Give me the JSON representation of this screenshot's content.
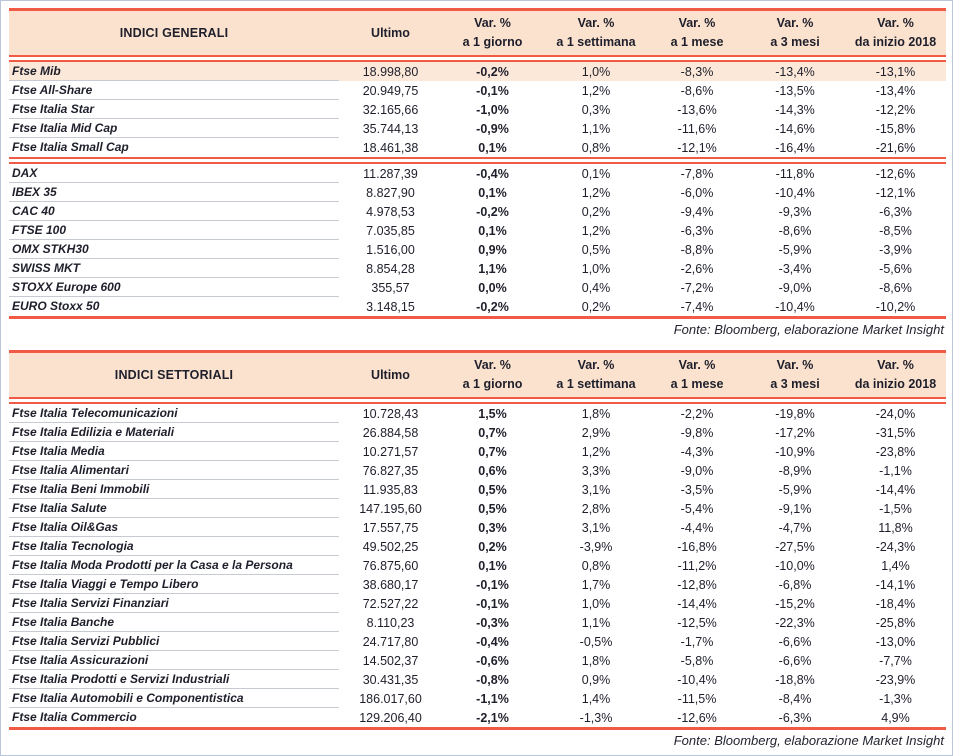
{
  "colors": {
    "accent_line": "#f15b45",
    "header_bg": "#fbe2cf",
    "highlight_row_bg": "#fce8d9",
    "row_divider": "#c6cad1",
    "frame_border": "#b9c6da",
    "text": "#1e1f2b"
  },
  "columns": {
    "ultimo": "Ultimo",
    "var_label": "Var. %",
    "periods": [
      "a 1 giorno",
      "a 1 settimana",
      "a 1 mese",
      "a 3 mesi",
      "da inizio 2018"
    ]
  },
  "fonte": "Fonte: Bloomberg, elaborazione Market Insight",
  "tables": [
    {
      "title": "INDICI GENERALI",
      "rows": [
        {
          "name": "Ftse Mib",
          "ultimo": "18.998,80",
          "values": [
            "-0,2%",
            "1,0%",
            "-8,3%",
            "-13,4%",
            "-13,1%"
          ],
          "highlight": true
        },
        {
          "name": "Ftse All-Share",
          "ultimo": "20.949,75",
          "values": [
            "-0,1%",
            "1,2%",
            "-8,6%",
            "-13,5%",
            "-13,4%"
          ]
        },
        {
          "name": "Ftse Italia Star",
          "ultimo": "32.165,66",
          "values": [
            "-1,0%",
            "0,3%",
            "-13,6%",
            "-14,3%",
            "-12,2%"
          ]
        },
        {
          "name": "Ftse Italia Mid Cap",
          "ultimo": "35.744,13",
          "values": [
            "-0,9%",
            "1,1%",
            "-11,6%",
            "-14,6%",
            "-15,8%"
          ]
        },
        {
          "name": "Ftse Italia Small Cap",
          "ultimo": "18.461,38",
          "values": [
            "0,1%",
            "0,8%",
            "-12,1%",
            "-16,4%",
            "-21,6%"
          ],
          "divider_after": true
        },
        {
          "name": "DAX",
          "ultimo": "11.287,39",
          "values": [
            "-0,4%",
            "0,1%",
            "-7,8%",
            "-11,8%",
            "-12,6%"
          ]
        },
        {
          "name": "IBEX 35",
          "ultimo": "8.827,90",
          "values": [
            "0,1%",
            "1,2%",
            "-6,0%",
            "-10,4%",
            "-12,1%"
          ]
        },
        {
          "name": "CAC 40",
          "ultimo": "4.978,53",
          "values": [
            "-0,2%",
            "0,2%",
            "-9,4%",
            "-9,3%",
            "-6,3%"
          ]
        },
        {
          "name": "FTSE 100",
          "ultimo": "7.035,85",
          "values": [
            "0,1%",
            "1,2%",
            "-6,3%",
            "-8,6%",
            "-8,5%"
          ]
        },
        {
          "name": "OMX STKH30",
          "ultimo": "1.516,00",
          "values": [
            "0,9%",
            "0,5%",
            "-8,8%",
            "-5,9%",
            "-3,9%"
          ]
        },
        {
          "name": "SWISS MKT",
          "ultimo": "8.854,28",
          "values": [
            "1,1%",
            "1,0%",
            "-2,6%",
            "-3,4%",
            "-5,6%"
          ]
        },
        {
          "name": "STOXX Europe 600",
          "ultimo": "355,57",
          "values": [
            "0,0%",
            "0,4%",
            "-7,2%",
            "-9,0%",
            "-8,6%"
          ]
        },
        {
          "name": "EURO Stoxx 50",
          "ultimo": "3.148,15",
          "values": [
            "-0,2%",
            "0,2%",
            "-7,4%",
            "-10,4%",
            "-10,2%"
          ]
        }
      ]
    },
    {
      "title": "INDICI SETTORIALI",
      "rows": [
        {
          "name": "Ftse Italia Telecomunicazioni",
          "ultimo": "10.728,43",
          "values": [
            "1,5%",
            "1,8%",
            "-2,2%",
            "-19,8%",
            "-24,0%"
          ]
        },
        {
          "name": "Ftse Italia Edilizia e Materiali",
          "ultimo": "26.884,58",
          "values": [
            "0,7%",
            "2,9%",
            "-9,8%",
            "-17,2%",
            "-31,5%"
          ]
        },
        {
          "name": "Ftse Italia Media",
          "ultimo": "10.271,57",
          "values": [
            "0,7%",
            "1,2%",
            "-4,3%",
            "-10,9%",
            "-23,8%"
          ]
        },
        {
          "name": "Ftse Italia Alimentari",
          "ultimo": "76.827,35",
          "values": [
            "0,6%",
            "3,3%",
            "-9,0%",
            "-8,9%",
            "-1,1%"
          ]
        },
        {
          "name": "Ftse Italia Beni Immobili",
          "ultimo": "11.935,83",
          "values": [
            "0,5%",
            "3,1%",
            "-3,5%",
            "-5,9%",
            "-14,4%"
          ]
        },
        {
          "name": "Ftse Italia Salute",
          "ultimo": "147.195,60",
          "values": [
            "0,5%",
            "2,8%",
            "-5,4%",
            "-9,1%",
            "-1,5%"
          ]
        },
        {
          "name": "Ftse Italia Oil&Gas",
          "ultimo": "17.557,75",
          "values": [
            "0,3%",
            "3,1%",
            "-4,4%",
            "-4,7%",
            "11,8%"
          ]
        },
        {
          "name": "Ftse Italia Tecnologia",
          "ultimo": "49.502,25",
          "values": [
            "0,2%",
            "-3,9%",
            "-16,8%",
            "-27,5%",
            "-24,3%"
          ]
        },
        {
          "name": "Ftse Italia Moda Prodotti per la Casa e la Persona",
          "ultimo": "76.875,60",
          "values": [
            "0,1%",
            "0,8%",
            "-11,2%",
            "-10,0%",
            "1,4%"
          ]
        },
        {
          "name": "Ftse Italia Viaggi e Tempo Libero",
          "ultimo": "38.680,17",
          "values": [
            "-0,1%",
            "1,7%",
            "-12,8%",
            "-6,8%",
            "-14,1%"
          ]
        },
        {
          "name": "Ftse Italia Servizi Finanziari",
          "ultimo": "72.527,22",
          "values": [
            "-0,1%",
            "1,0%",
            "-14,4%",
            "-15,2%",
            "-18,4%"
          ]
        },
        {
          "name": "Ftse Italia Banche",
          "ultimo": "8.110,23",
          "values": [
            "-0,3%",
            "1,1%",
            "-12,5%",
            "-22,3%",
            "-25,8%"
          ]
        },
        {
          "name": "Ftse Italia Servizi Pubblici",
          "ultimo": "24.717,80",
          "values": [
            "-0,4%",
            "-0,5%",
            "-1,7%",
            "-6,6%",
            "-13,0%"
          ]
        },
        {
          "name": "Ftse Italia Assicurazioni",
          "ultimo": "14.502,37",
          "values": [
            "-0,6%",
            "1,8%",
            "-5,8%",
            "-6,6%",
            "-7,7%"
          ]
        },
        {
          "name": "Ftse Italia Prodotti e Servizi Industriali",
          "ultimo": "30.431,35",
          "values": [
            "-0,8%",
            "0,9%",
            "-10,4%",
            "-18,8%",
            "-23,9%"
          ]
        },
        {
          "name": "Ftse Italia Automobili e Componentistica",
          "ultimo": "186.017,60",
          "values": [
            "-1,1%",
            "1,4%",
            "-11,5%",
            "-8,4%",
            "-1,3%"
          ]
        },
        {
          "name": "Ftse Italia Commercio",
          "ultimo": "129.206,40",
          "values": [
            "-2,1%",
            "-1,3%",
            "-12,6%",
            "-6,3%",
            "4,9%"
          ]
        }
      ]
    }
  ]
}
